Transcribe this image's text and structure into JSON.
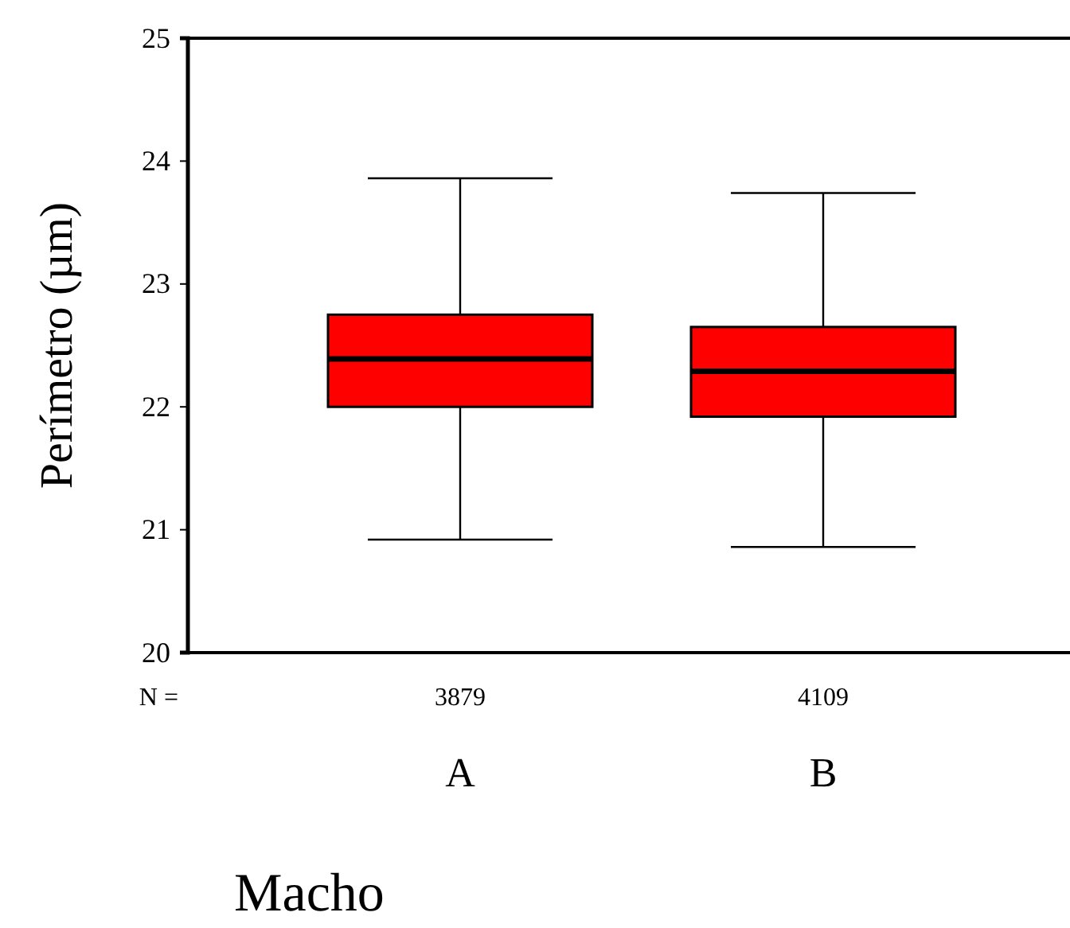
{
  "chart_data": {
    "type": "box",
    "ylabel": "Perímetro  (µm)",
    "xlabel": "Macho",
    "categories": [
      "A",
      "B"
    ],
    "color": "#ff0000",
    "boxes": [
      {
        "low": 20.92,
        "q1": 22.0,
        "median": 22.39,
        "q3": 22.75,
        "high": 23.86
      },
      {
        "low": 20.86,
        "q1": 21.92,
        "median": 22.29,
        "q3": 22.65,
        "high": 23.74
      }
    ],
    "ylim": [
      20,
      25
    ],
    "yticks": [
      20,
      21,
      22,
      23,
      24,
      25
    ],
    "grid": false,
    "annotations": [
      "N =",
      "3879",
      "4109"
    ]
  }
}
